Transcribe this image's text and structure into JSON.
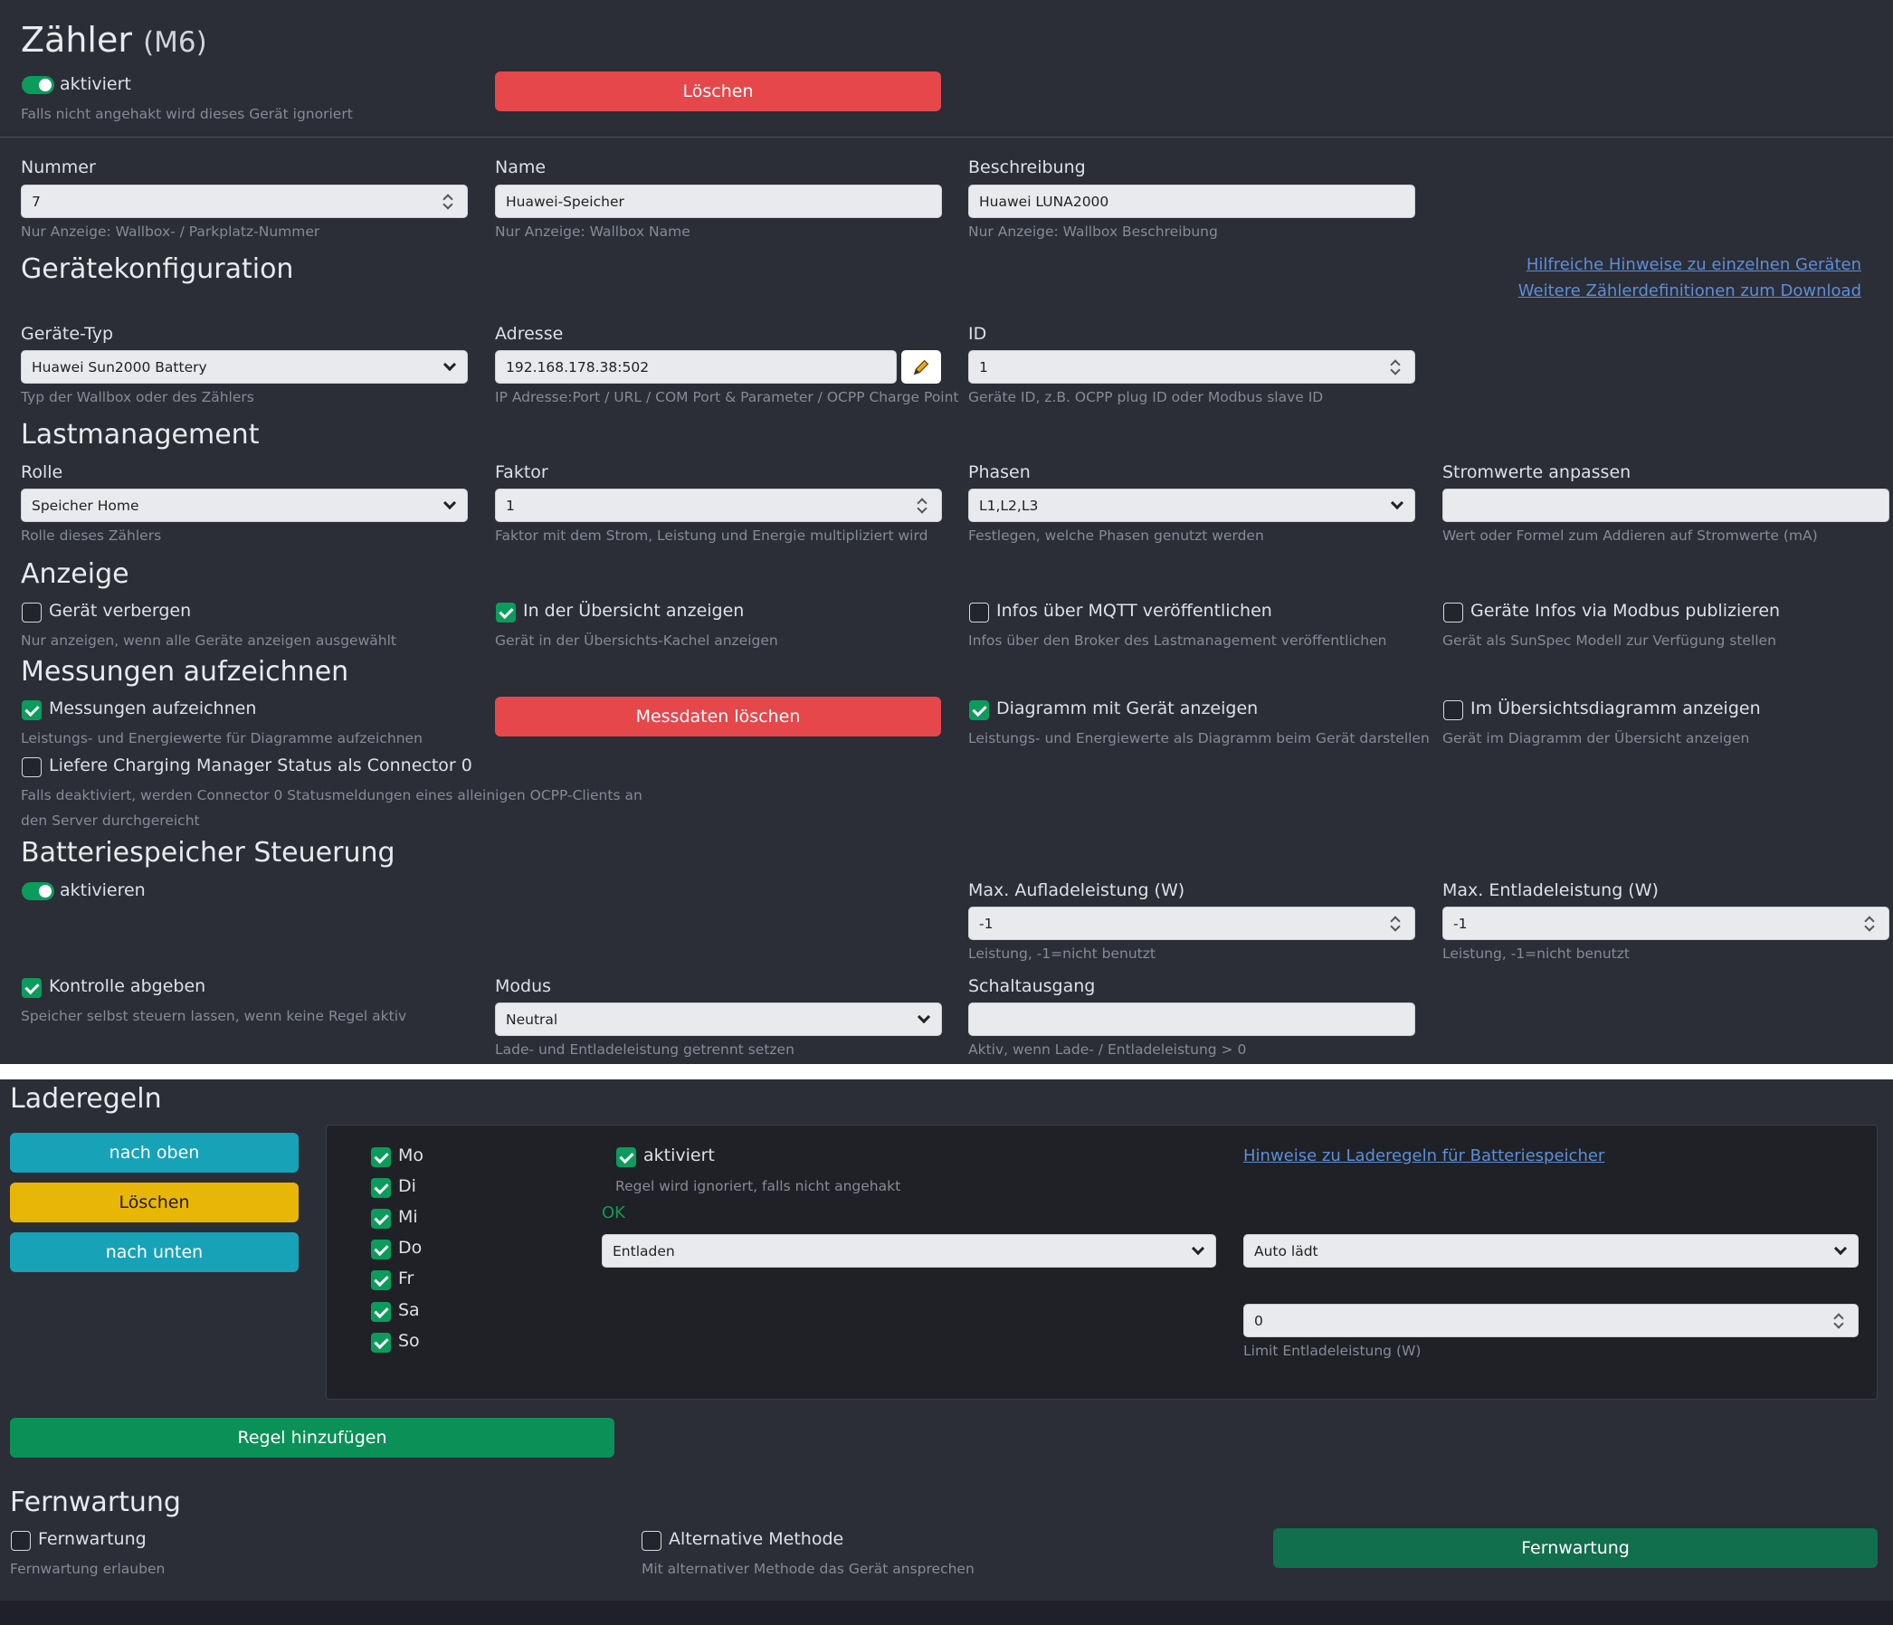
{
  "header": {
    "title": "Zähler",
    "subtitle": "(M6)",
    "active_label": "aktiviert",
    "active_help": "Falls nicht angehakt wird dieses Gerät ignoriert",
    "delete_button": "Löschen"
  },
  "general": {
    "nummer_label": "Nummer",
    "nummer_value": "7",
    "nummer_help": "Nur Anzeige: Wallbox- / Parkplatz-Nummer",
    "name_label": "Name",
    "name_value": "Huawei-Speicher",
    "name_help": "Nur Anzeige: Wallbox Name",
    "beschreibung_label": "Beschreibung",
    "beschreibung_value": "Huawei LUNA2000",
    "beschreibung_help": "Nur Anzeige: Wallbox Beschreibung"
  },
  "geraetekonfiguration": {
    "heading": "Gerätekonfiguration",
    "link1": "Hilfreiche Hinweise zu einzelnen Geräten",
    "link2": "Weitere Zählerdefinitionen zum Download",
    "typ_label": "Geräte-Typ",
    "typ_value": "Huawei Sun2000 Battery",
    "typ_help": "Typ der Wallbox oder des Zählers",
    "adresse_label": "Adresse",
    "adresse_value": "192.168.178.38:502",
    "adresse_help": "IP Adresse:Port / URL / COM Port & Parameter / OCPP Charge Point",
    "id_label": "ID",
    "id_value": "1",
    "id_help": "Geräte ID, z.B. OCPP plug ID oder Modbus slave ID"
  },
  "lastmanagement": {
    "heading": "Lastmanagement",
    "rolle_label": "Rolle",
    "rolle_value": "Speicher Home",
    "rolle_help": "Rolle dieses Zählers",
    "faktor_label": "Faktor",
    "faktor_value": "1",
    "faktor_help": "Faktor mit dem Strom, Leistung und Energie multipliziert wird",
    "phasen_label": "Phasen",
    "phasen_value": "L1,L2,L3",
    "phasen_help": "Festlegen, welche Phasen genutzt werden",
    "strom_label": "Stromwerte anpassen",
    "strom_value": "",
    "strom_help": "Wert oder Formel zum Addieren auf Stromwerte (mA)"
  },
  "anzeige": {
    "heading": "Anzeige",
    "items": [
      {
        "label": "Gerät verbergen",
        "help": "Nur anzeigen, wenn alle Geräte anzeigen ausgewählt",
        "checked": false
      },
      {
        "label": "In der Übersicht anzeigen",
        "help": "Gerät in der Übersichts-Kachel anzeigen",
        "checked": true
      },
      {
        "label": "Infos über MQTT veröffentlichen",
        "help": "Infos über den Broker des Lastmanagement veröffentlichen",
        "checked": false
      },
      {
        "label": "Geräte Infos via Modbus publizieren",
        "help": "Gerät als SunSpec Modell zur Verfügung stellen",
        "checked": false
      }
    ]
  },
  "messungen": {
    "heading": "Messungen aufzeichnen",
    "record_label": "Messungen aufzeichnen",
    "record_help": "Leistungs- und Energiewerte für Diagramme aufzeichnen",
    "delete_button": "Messdaten löschen",
    "diagram_label": "Diagramm mit Gerät anzeigen",
    "diagram_help": "Leistungs- und Energiewerte als Diagramm beim Gerät darstellen",
    "overview_label": "Im Übersichtsdiagramm anzeigen",
    "overview_help": "Gerät im Diagramm der Übersicht anzeigen",
    "cm_label": "Liefere Charging Manager Status als Connector 0",
    "cm_help1": "Falls deaktiviert, werden Connector 0 Statusmeldungen eines alleinigen OCPP-Clients an",
    "cm_help2": "den Server durchgereicht"
  },
  "batterie": {
    "heading": "Batteriespeicher Steuerung",
    "activate_label": "aktivieren",
    "max_auf_label": "Max. Aufladeleistung (W)",
    "max_auf_value": "-1",
    "max_auf_help": "Leistung, -1=nicht benutzt",
    "max_ent_label": "Max. Entladeleistung (W)",
    "max_ent_value": "-1",
    "max_ent_help": "Leistung, -1=nicht benutzt",
    "kontrolle_label": "Kontrolle abgeben",
    "kontrolle_help": "Speicher selbst steuern lassen, wenn keine Regel aktiv",
    "modus_label": "Modus",
    "modus_value": "Neutral",
    "modus_help": "Lade- und Entladeleistung getrennt setzen",
    "schalt_label": "Schaltausgang",
    "schalt_value": "",
    "schalt_help": "Aktiv, wenn Lade- / Entladeleistung > 0"
  },
  "laderegeln": {
    "heading": "Laderegeln",
    "up_button": "nach oben",
    "delete_button": "Löschen",
    "down_button": "nach unten",
    "days": [
      "Mo",
      "Di",
      "Mi",
      "Do",
      "Fr",
      "Sa",
      "So"
    ],
    "active_label": "aktiviert",
    "active_help": "Regel wird ignoriert, falls nicht angehakt",
    "status": "OK",
    "hint_link": "Hinweise zu Laderegeln für Batteriespeicher",
    "action_value": "Entladen",
    "condition_value": "Auto lädt",
    "limit_value": "0",
    "limit_help": "Limit Entladeleistung (W)",
    "add_button": "Regel hinzufügen"
  },
  "fernwartung": {
    "heading": "Fernwartung",
    "fw_label": "Fernwartung",
    "fw_help": "Fernwartung erlauben",
    "alt_label": "Alternative Methode",
    "alt_help": "Mit alternativer Methode das Gerät ansprechen",
    "button": "Fernwartung"
  },
  "colors": {
    "background": "#2b2d37",
    "danger": "#e5474b",
    "success": "#0b9c5c",
    "info": "#17a2b8",
    "warning": "#e8b607",
    "link": "#5d8fd6"
  }
}
